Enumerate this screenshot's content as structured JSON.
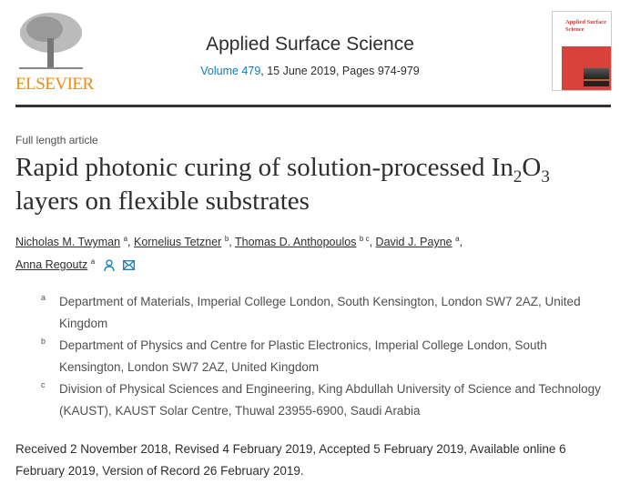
{
  "publisher": {
    "logo_text": "ELSEVIER",
    "brand_color": "#f28a13"
  },
  "journal": {
    "title": "Applied Surface Science",
    "volume_link": "Volume 479",
    "issue_info": ", 15 June 2019, Pages 974-979",
    "cover_title": "Applied Surface Science",
    "link_color": "#0c7dbb"
  },
  "article": {
    "type": "Full length article",
    "title_part1": "Rapid photonic curing of solution-processed In",
    "sub1": "2",
    "title_part2": "O",
    "sub2": "3",
    "title_part3": " layers on flexible substrates"
  },
  "authors": [
    {
      "name": "Nicholas M. Twyman",
      "aff": "a",
      "sep": ", "
    },
    {
      "name": "Kornelius Tetzner",
      "aff": "b",
      "sep": ", "
    },
    {
      "name": "Thomas D. Anthopoulos",
      "aff": "b c",
      "sep": ", "
    },
    {
      "name": "David J. Payne",
      "aff": "a",
      "sep": ","
    },
    {
      "name": "Anna Regoutz",
      "aff": "a",
      "sep": ""
    }
  ],
  "icons": {
    "corresponding_author": "person-icon",
    "email": "envelope-icon"
  },
  "affiliations": [
    {
      "label": "a",
      "text": "Department of Materials, Imperial College London, South Kensington, London SW7 2AZ, United Kingdom"
    },
    {
      "label": "b",
      "text": "Department of Physics and Centre for Plastic Electronics, Imperial College London, South Kensington, London SW7 2AZ, United Kingdom"
    },
    {
      "label": "c",
      "text": "Division of Physical Sciences and Engineering, King Abdullah University of Science and Technology (KAUST), KAUST Solar Centre, Thuwal 23955-6900, Saudi Arabia"
    }
  ],
  "dates": "Received 2 November 2018, Revised 4 February 2019, Accepted 5 February 2019, Available online 6 February 2019, Version of Record 26 February 2019."
}
